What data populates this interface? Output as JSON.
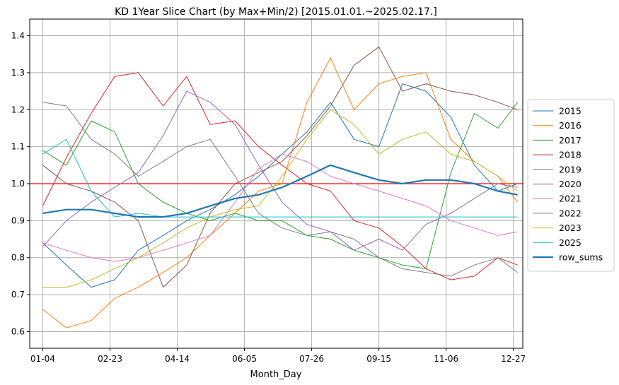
{
  "chart_data": {
    "type": "line",
    "title": "KD 1Year Slice Chart (by Max+Min/2) [2015.01.01.~2025.02.17.]",
    "xlabel": "Month_Day",
    "ylabel": "",
    "x_ticks": [
      "01-04",
      "02-23",
      "04-14",
      "06-05",
      "07-26",
      "09-15",
      "11-06",
      "12-27"
    ],
    "y_ticks": [
      "0.6",
      "0.7",
      "0.8",
      "0.9",
      "1.0",
      "1.1",
      "1.2",
      "1.3",
      "1.4"
    ],
    "xlim": [
      -10,
      367
    ],
    "ylim": [
      0.555,
      1.445
    ],
    "grid": true,
    "legend_position": "right",
    "reference_line": {
      "y": 1.0,
      "color": "#ff0000"
    },
    "x_points": [
      0,
      18,
      37,
      55,
      73,
      92,
      110,
      128,
      147,
      165,
      183,
      202,
      220,
      238,
      257,
      275,
      293,
      312,
      330,
      348,
      363
    ],
    "series": [
      {
        "name": "2015",
        "color": "#1f77b4",
        "width": 1,
        "values": [
          0.84,
          0.78,
          0.72,
          0.74,
          0.82,
          0.86,
          0.9,
          0.93,
          0.97,
          1.02,
          1.08,
          1.14,
          1.22,
          1.12,
          1.1,
          1.27,
          1.25,
          1.18,
          1.05,
          0.98,
          1.0
        ]
      },
      {
        "name": "2016",
        "color": "#ff7f0e",
        "width": 1,
        "values": [
          0.66,
          0.61,
          0.63,
          0.69,
          0.72,
          0.76,
          0.8,
          0.86,
          0.92,
          0.98,
          1.0,
          1.22,
          1.34,
          1.2,
          1.27,
          1.29,
          1.3,
          1.12,
          1.06,
          1.02,
          0.95
        ]
      },
      {
        "name": "2017",
        "color": "#2ca02c",
        "width": 1,
        "values": [
          1.09,
          1.05,
          1.17,
          1.14,
          1.0,
          0.95,
          0.92,
          0.9,
          0.92,
          0.9,
          0.9,
          0.86,
          0.85,
          0.82,
          0.8,
          0.78,
          0.77,
          1.03,
          1.19,
          1.15,
          1.22
        ]
      },
      {
        "name": "2018",
        "color": "#d62728",
        "width": 1,
        "values": [
          0.94,
          1.07,
          1.19,
          1.29,
          1.3,
          1.21,
          1.29,
          1.16,
          1.17,
          1.1,
          1.05,
          1.0,
          0.98,
          0.9,
          0.88,
          0.83,
          0.77,
          0.74,
          0.75,
          0.8,
          0.78
        ]
      },
      {
        "name": "2019",
        "color": "#9467bd",
        "width": 1,
        "values": [
          0.83,
          0.9,
          0.95,
          0.99,
          1.03,
          1.13,
          1.25,
          1.22,
          1.16,
          1.05,
          0.95,
          0.89,
          0.87,
          0.82,
          0.85,
          0.82,
          0.89,
          0.92,
          0.96,
          1.0,
          0.99
        ]
      },
      {
        "name": "2020",
        "color": "#8c564b",
        "width": 1,
        "values": [
          1.05,
          1.0,
          0.98,
          0.95,
          0.9,
          0.72,
          0.78,
          0.92,
          1.0,
          1.03,
          1.06,
          1.13,
          1.21,
          1.32,
          1.37,
          1.25,
          1.27,
          1.25,
          1.24,
          1.22,
          1.2
        ]
      },
      {
        "name": "2021",
        "color": "#e377c2",
        "width": 1,
        "values": [
          0.84,
          0.82,
          0.8,
          0.79,
          0.8,
          0.82,
          0.84,
          0.86,
          0.95,
          1.04,
          1.08,
          1.06,
          1.02,
          1.0,
          0.98,
          0.96,
          0.94,
          0.9,
          0.88,
          0.86,
          0.87
        ]
      },
      {
        "name": "2022",
        "color": "#7f7f7f",
        "width": 1,
        "values": [
          1.22,
          1.21,
          1.12,
          1.08,
          1.02,
          1.06,
          1.1,
          1.12,
          1.02,
          0.92,
          0.88,
          0.86,
          0.87,
          0.85,
          0.8,
          0.77,
          0.76,
          0.75,
          0.78,
          0.8,
          0.76
        ]
      },
      {
        "name": "2023",
        "color": "#bcbd22",
        "width": 1,
        "values": [
          0.72,
          0.72,
          0.74,
          0.77,
          0.8,
          0.84,
          0.88,
          0.91,
          0.93,
          0.94,
          1.02,
          1.12,
          1.2,
          1.16,
          1.08,
          1.12,
          1.14,
          1.08,
          1.06,
          1.02,
          0.98
        ]
      },
      {
        "name": "2025",
        "color": "#17becf",
        "width": 1,
        "values": [
          1.08,
          1.12,
          0.98,
          0.91,
          0.92,
          0.91,
          0.91,
          0.91,
          0.91,
          0.91,
          0.91,
          0.91,
          0.91,
          0.91,
          0.91,
          0.91,
          0.91,
          0.91,
          0.91,
          0.91,
          0.91
        ]
      },
      {
        "name": "row_sums",
        "color": "#1f77b4",
        "width": 2.2,
        "values": [
          0.92,
          0.93,
          0.93,
          0.92,
          0.91,
          0.91,
          0.92,
          0.94,
          0.96,
          0.97,
          0.99,
          1.02,
          1.05,
          1.03,
          1.01,
          1.0,
          1.01,
          1.01,
          1.0,
          0.98,
          0.97
        ]
      }
    ]
  }
}
